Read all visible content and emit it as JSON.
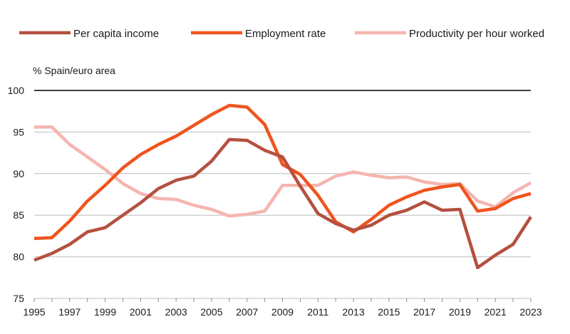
{
  "chart_data": {
    "type": "line",
    "y_unit_label": "% Spain/euro area",
    "ylim": [
      75,
      100
    ],
    "y_ticks": [
      "100",
      "95",
      "90",
      "85",
      "80",
      "75"
    ],
    "y_tick_values": [
      100,
      95,
      90,
      85,
      80,
      75
    ],
    "x": [
      1995,
      1996,
      1997,
      1998,
      1999,
      2000,
      2001,
      2002,
      2003,
      2004,
      2005,
      2006,
      2007,
      2008,
      2009,
      2010,
      2011,
      2012,
      2013,
      2014,
      2015,
      2016,
      2017,
      2018,
      2019,
      2020,
      2021,
      2022,
      2023
    ],
    "x_ticks": [
      "1995",
      "1997",
      "1999",
      "2001",
      "2003",
      "2005",
      "2007",
      "2009",
      "2011",
      "2013",
      "2015",
      "2017",
      "2019",
      "2021",
      "2023"
    ],
    "x_tick_values": [
      1995,
      1997,
      1999,
      2001,
      2003,
      2005,
      2007,
      2009,
      2011,
      2013,
      2015,
      2017,
      2019,
      2021,
      2023
    ],
    "grid": "horizontal",
    "legend_position": "top",
    "series": [
      {
        "name": "Per capita income",
        "color": "#b5503f",
        "values": [
          79.6,
          80.4,
          81.5,
          83.0,
          83.5,
          85.0,
          86.5,
          88.2,
          89.2,
          89.7,
          91.5,
          94.1,
          94.0,
          92.8,
          92.0,
          88.5,
          85.2,
          84.0,
          83.2,
          83.8,
          85.0,
          85.6,
          86.6,
          85.6,
          85.7,
          78.7,
          80.2,
          81.5,
          84.8
        ]
      },
      {
        "name": "Employment rate",
        "color": "#f0541e",
        "values": [
          82.2,
          82.3,
          84.3,
          86.7,
          88.6,
          90.7,
          92.3,
          93.5,
          94.5,
          95.8,
          97.1,
          98.2,
          98.0,
          95.9,
          91.1,
          89.9,
          87.4,
          84.2,
          83.0,
          84.5,
          86.2,
          87.2,
          88.0,
          88.4,
          88.7,
          85.5,
          85.8,
          87.0,
          87.6
        ]
      },
      {
        "name": "Productivity per hour worked",
        "color": "#f5b5b0",
        "values": [
          95.6,
          95.6,
          93.5,
          92.0,
          90.5,
          88.8,
          87.6,
          87.0,
          86.9,
          86.2,
          85.7,
          84.9,
          85.1,
          85.5,
          88.6,
          88.6,
          88.6,
          89.7,
          90.2,
          89.8,
          89.5,
          89.6,
          89.0,
          88.7,
          88.8,
          86.7,
          86.0,
          87.7,
          88.9
        ]
      }
    ]
  }
}
